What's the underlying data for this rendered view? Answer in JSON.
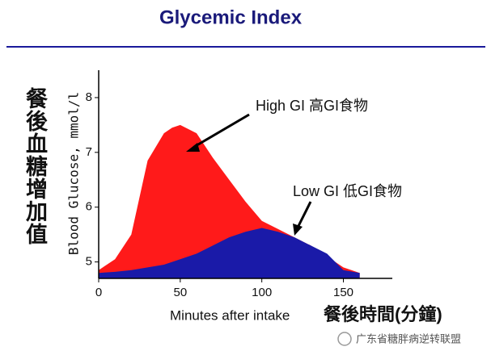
{
  "chart_data": {
    "type": "area",
    "title": "Glycemic Index",
    "y_label": "Blood Glucose, mmol/l",
    "y_label_cn": "餐後血糖增加值",
    "x_label": "Minutes after intake",
    "x_label_cn": "餐後時間(分鐘)",
    "annotations": [
      "High GI 高GI食物",
      "Low GI 低GI食物"
    ],
    "x": [
      0,
      10,
      20,
      30,
      40,
      45,
      50,
      60,
      70,
      80,
      90,
      100,
      110,
      120,
      130,
      140,
      150,
      160
    ],
    "series": [
      {
        "name": "High GI",
        "color": "#ff1a1a",
        "values": [
          4.85,
          5.05,
          5.5,
          6.85,
          7.35,
          7.45,
          7.5,
          7.35,
          6.9,
          6.5,
          6.1,
          5.75,
          5.6,
          5.45,
          5.3,
          5.1,
          4.9,
          4.8
        ]
      },
      {
        "name": "Low GI",
        "color": "#1a1aa8",
        "values": [
          4.8,
          4.82,
          4.85,
          4.9,
          4.95,
          5.0,
          5.05,
          5.15,
          5.3,
          5.45,
          5.55,
          5.62,
          5.55,
          5.45,
          5.3,
          5.15,
          4.85,
          4.8
        ]
      }
    ],
    "xlim": [
      0,
      180
    ],
    "xticks": [
      0,
      50,
      100,
      150
    ],
    "ylim": [
      4.7,
      8.5
    ],
    "yticks": [
      5,
      6,
      7,
      8
    ]
  },
  "watermark": "广东省糖胖病逆转联盟"
}
